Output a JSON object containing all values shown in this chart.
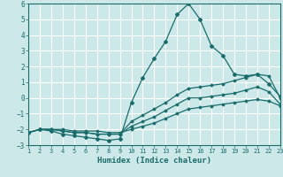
{
  "xlabel": "Humidex (Indice chaleur)",
  "bg_color": "#cce8e8",
  "line_color": "#1a6b6b",
  "grid_color": "#ffffff",
  "xlim": [
    1,
    23
  ],
  "ylim": [
    -3,
    6
  ],
  "xticks": [
    1,
    2,
    3,
    4,
    5,
    6,
    7,
    8,
    9,
    10,
    11,
    12,
    13,
    14,
    15,
    16,
    17,
    18,
    19,
    20,
    21,
    22,
    23
  ],
  "yticks": [
    -3,
    -2,
    -1,
    0,
    1,
    2,
    3,
    4,
    5,
    6
  ],
  "series": [
    {
      "x": [
        1,
        2,
        3,
        4,
        5,
        6,
        7,
        8,
        9,
        10,
        11,
        12,
        13,
        14,
        15,
        16,
        17,
        18,
        19,
        20,
        21,
        22,
        23
      ],
      "y": [
        -2.2,
        -2.0,
        -2.1,
        -2.3,
        -2.4,
        -2.5,
        -2.6,
        -2.7,
        -2.6,
        -0.3,
        1.3,
        2.5,
        3.6,
        5.3,
        6.0,
        5.0,
        3.3,
        2.7,
        1.5,
        1.4,
        1.5,
        0.9,
        0.1
      ],
      "marker": true
    },
    {
      "x": [
        1,
        2,
        3,
        4,
        5,
        6,
        7,
        8,
        9,
        10,
        11,
        12,
        13,
        14,
        15,
        16,
        17,
        18,
        19,
        20,
        21,
        22,
        23
      ],
      "y": [
        -2.2,
        -2.0,
        -2.0,
        -2.1,
        -2.2,
        -2.2,
        -2.3,
        -2.3,
        -2.3,
        -1.5,
        -1.1,
        -0.7,
        -0.3,
        0.2,
        0.6,
        0.7,
        0.8,
        0.9,
        1.1,
        1.3,
        1.5,
        1.4,
        0.0
      ],
      "marker": false
    },
    {
      "x": [
        1,
        2,
        3,
        4,
        5,
        6,
        7,
        8,
        9,
        10,
        11,
        12,
        13,
        14,
        15,
        16,
        17,
        18,
        19,
        20,
        21,
        22,
        23
      ],
      "y": [
        -2.2,
        -2.0,
        -2.0,
        -2.1,
        -2.2,
        -2.2,
        -2.3,
        -2.3,
        -2.3,
        -1.8,
        -1.5,
        -1.2,
        -0.8,
        -0.4,
        0.0,
        0.0,
        0.1,
        0.2,
        0.3,
        0.5,
        0.7,
        0.4,
        -0.4
      ],
      "marker": false
    },
    {
      "x": [
        1,
        2,
        3,
        4,
        5,
        6,
        7,
        8,
        9,
        10,
        11,
        12,
        13,
        14,
        15,
        16,
        17,
        18,
        19,
        20,
        21,
        22,
        23
      ],
      "y": [
        -2.2,
        -2.0,
        -2.0,
        -2.0,
        -2.1,
        -2.1,
        -2.1,
        -2.2,
        -2.2,
        -2.0,
        -1.8,
        -1.6,
        -1.3,
        -1.0,
        -0.7,
        -0.6,
        -0.5,
        -0.4,
        -0.3,
        -0.2,
        -0.1,
        -0.2,
        -0.5
      ],
      "marker": false
    }
  ]
}
